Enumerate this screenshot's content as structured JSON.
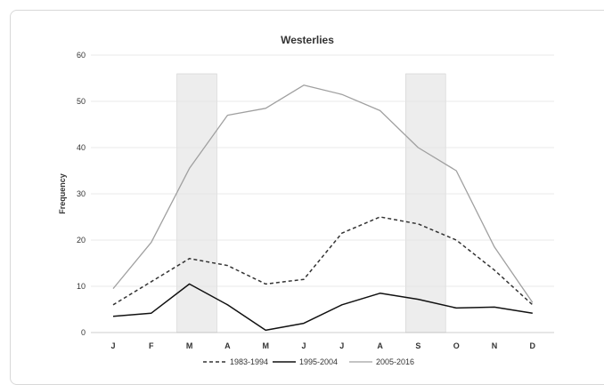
{
  "chart_data": {
    "type": "line",
    "title": "Westerlies",
    "ylabel": "Frequency",
    "xlabel": "",
    "categories": [
      "J",
      "F",
      "M",
      "A",
      "M",
      "J",
      "J",
      "A",
      "S",
      "O",
      "N",
      "D"
    ],
    "ylim": [
      0,
      60
    ],
    "yticks": [
      0,
      10,
      20,
      30,
      40,
      50,
      60
    ],
    "grid": true,
    "legend": "bottom",
    "shaded_months": [
      "M",
      "S"
    ],
    "series": [
      {
        "name": "1983-1994",
        "style": "dashed",
        "color": "#333333",
        "values": [
          6,
          11,
          16,
          14.5,
          10.5,
          11.5,
          21.5,
          25,
          23.5,
          20,
          13.5,
          6
        ]
      },
      {
        "name": "1995-2004",
        "style": "solid",
        "color": "#111111",
        "values": [
          3.5,
          4.2,
          10.5,
          6,
          0.5,
          2,
          6,
          8.5,
          7.2,
          5.3,
          5.5,
          4.2
        ]
      },
      {
        "name": "2005-2016",
        "style": "solid",
        "color": "#a0a0a0",
        "values": [
          9.5,
          19.5,
          35.5,
          47,
          48.5,
          53.5,
          51.5,
          48,
          40,
          35,
          18.5,
          6.5
        ]
      }
    ]
  }
}
